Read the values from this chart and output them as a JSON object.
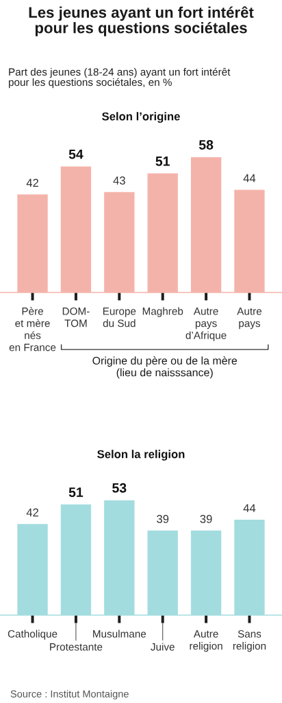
{
  "chart_data": [
    {
      "type": "other",
      "title": "Les jeunes ayant un fort intérêt\npour les questions sociétales",
      "subtitle": "Part des jeunes (18-24 ans) ayant un fort intérêt\npour les questions sociétales, en %"
    },
    {
      "type": "bar",
      "title": "Selon l’origine",
      "categories": [
        "Père\net mère\nnés\nen France",
        "DOM-\nTOM",
        "Europe\ndu Sud",
        "Maghreb",
        "Autre\npays\nd’Afrique",
        "Autre\npays"
      ],
      "values": [
        42,
        54,
        43,
        51,
        58,
        44
      ],
      "color": "#f4b3aa",
      "data_labels": true,
      "tick_labels": "x",
      "annotations": [
        "Origine du père ou de la mère\n(lieu de naisssance)"
      ]
    },
    {
      "type": "bar",
      "title": "Selon la religion",
      "categories": [
        "Catholique",
        "Protestante",
        "Musulmane",
        "Juive",
        "Autre\nreligion",
        "Sans\nreligion"
      ],
      "values": [
        42,
        51,
        53,
        39,
        39,
        44
      ],
      "color": "#a3dcdf",
      "data_labels": true,
      "tick_labels": "x",
      "annotations": [
        "Source : Institut Montaigne"
      ]
    }
  ]
}
